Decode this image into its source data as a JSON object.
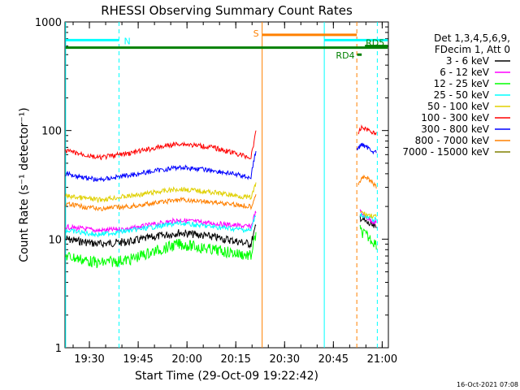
{
  "chart_data": {
    "type": "line",
    "title": "RHESSI Observing Summary Count Rates",
    "xlabel": "Start Time (29-Oct-09 19:22:42)",
    "ylabel": "Count Rate (s⁻¹ detector⁻¹)",
    "y_scale": "log",
    "ylim": [
      1,
      1000
    ],
    "y_ticks": [
      "1",
      "10",
      "100",
      "1000"
    ],
    "xlim_minutes_after_start": [
      -0.2,
      99.2
    ],
    "x_ticks": [
      {
        "label": "19:30",
        "minutes": 7.3
      },
      {
        "label": "19:45",
        "minutes": 22.3
      },
      {
        "label": "20:00",
        "minutes": 37.3
      },
      {
        "label": "20:15",
        "minutes": 52.3
      },
      {
        "label": "20:30",
        "minutes": 67.3
      },
      {
        "label": "20:45",
        "minutes": 82.3
      },
      {
        "label": "21:00",
        "minutes": 97.3
      }
    ],
    "legend_header": [
      "Det 1,3,4,5,6,9,",
      "FDecim 1, Att 0"
    ],
    "legend_position": "right",
    "series": [
      {
        "name": "3 - 6 keV",
        "color": "#000000",
        "seg1": [
          [
            0,
            10
          ],
          [
            10,
            9
          ],
          [
            20,
            9.5
          ],
          [
            35,
            11.5
          ],
          [
            45,
            10.5
          ],
          [
            57,
            9
          ],
          [
            58.5,
            13
          ]
        ],
        "seg2": [
          [
            90.5,
            16
          ],
          [
            92,
            14.5
          ],
          [
            95.5,
            12.5
          ]
        ]
      },
      {
        "name": "6 - 12 keV",
        "color": "#ff00ff",
        "seg1": [
          [
            0,
            13
          ],
          [
            10,
            12
          ],
          [
            20,
            12.5
          ],
          [
            35,
            15
          ],
          [
            45,
            14
          ],
          [
            57,
            13
          ],
          [
            58.5,
            18
          ]
        ],
        "seg2": [
          [
            90.5,
            18
          ],
          [
            92,
            16
          ],
          [
            95.5,
            14
          ]
        ]
      },
      {
        "name": "12 - 25 keV",
        "color": "#00ff00",
        "seg1": [
          [
            0,
            7
          ],
          [
            10,
            6
          ],
          [
            20,
            6.5
          ],
          [
            35,
            9
          ],
          [
            45,
            8
          ],
          [
            57,
            7
          ],
          [
            58.5,
            11
          ]
        ],
        "seg2": [
          [
            90.5,
            12
          ],
          [
            92,
            11
          ],
          [
            95.5,
            9
          ]
        ]
      },
      {
        "name": "25 - 50 keV",
        "color": "#00ffff",
        "seg1": [
          [
            0,
            12
          ],
          [
            10,
            11
          ],
          [
            20,
            12
          ],
          [
            35,
            14
          ],
          [
            45,
            13
          ],
          [
            57,
            12
          ],
          [
            58.5,
            17
          ]
        ],
        "seg2": [
          [
            90.5,
            17
          ],
          [
            92,
            16
          ],
          [
            95.5,
            15
          ]
        ]
      },
      {
        "name": "50 - 100 keV",
        "color": "#e0d000",
        "seg1": [
          [
            0,
            25
          ],
          [
            10,
            23
          ],
          [
            20,
            25
          ],
          [
            35,
            29
          ],
          [
            45,
            27
          ],
          [
            57,
            24
          ],
          [
            58.5,
            32
          ]
        ],
        "seg2": [
          [
            90.5,
            18
          ],
          [
            92,
            17
          ],
          [
            95.5,
            16
          ]
        ]
      },
      {
        "name": "100 - 300 keV",
        "color": "#ff0000",
        "seg1": [
          [
            0,
            65
          ],
          [
            10,
            56
          ],
          [
            20,
            62
          ],
          [
            35,
            76
          ],
          [
            45,
            70
          ],
          [
            57,
            56
          ],
          [
            58.5,
            95
          ]
        ],
        "seg2": [
          [
            90,
            95
          ],
          [
            91,
            108
          ],
          [
            95.5,
            93
          ]
        ]
      },
      {
        "name": "300 - 800 keV",
        "color": "#0000ff",
        "seg1": [
          [
            0,
            40
          ],
          [
            10,
            35
          ],
          [
            20,
            39
          ],
          [
            35,
            46
          ],
          [
            45,
            43
          ],
          [
            57,
            37
          ],
          [
            58.5,
            65
          ]
        ],
        "seg2": [
          [
            89.5,
            66
          ],
          [
            91,
            75
          ],
          [
            95.5,
            62
          ]
        ]
      },
      {
        "name": "800 - 7000 keV",
        "color": "#ff8000",
        "seg1": [
          [
            0,
            21
          ],
          [
            10,
            19
          ],
          [
            20,
            20
          ],
          [
            35,
            23
          ],
          [
            45,
            22
          ],
          [
            57,
            20
          ],
          [
            58.5,
            26
          ]
        ],
        "seg2": [
          [
            90,
            33
          ],
          [
            92,
            38
          ],
          [
            95.5,
            30
          ]
        ]
      },
      {
        "name": "7000 - 15000 keV",
        "color": "#808000",
        "seg1": [],
        "seg2": []
      }
    ],
    "annotations": [
      {
        "label": "N",
        "color": "#00ffff",
        "bar_minutes": [
          0,
          16.4
        ],
        "bar_y": 680
      },
      {
        "label": "S",
        "color": "#ff8000",
        "bar_minutes": [
          60.4,
          89.5
        ],
        "bar_y": 760
      },
      {
        "label": "RD4",
        "color": "#008000",
        "bar_minutes": [
          89.6,
          91
        ],
        "bar_y": 500
      },
      {
        "label": "RD5",
        "color": "#008000",
        "bar_minutes": [
          92,
          99
        ],
        "bar_y": 600
      },
      {
        "label": "",
        "color": "#008000",
        "bar_minutes": [
          0,
          99
        ],
        "bar_y": 580
      },
      {
        "label": "",
        "color": "#00ffff",
        "bar_minutes": [
          79.5,
          99
        ],
        "bar_y": 680
      }
    ],
    "vertical_lines": [
      {
        "minutes": 0,
        "color": "#00ffff",
        "style": "solid"
      },
      {
        "minutes": 16.4,
        "color": "#00ffff",
        "style": "dashed"
      },
      {
        "minutes": 60.4,
        "color": "#ff8000",
        "style": "solid"
      },
      {
        "minutes": 79.5,
        "color": "#00ffff",
        "style": "solid"
      },
      {
        "minutes": 89.5,
        "color": "#ff8000",
        "style": "dashed"
      },
      {
        "minutes": 95.8,
        "color": "#00ffff",
        "style": "dashed"
      }
    ]
  },
  "footer": {
    "timestamp": "16-Oct-2021 07:08"
  }
}
